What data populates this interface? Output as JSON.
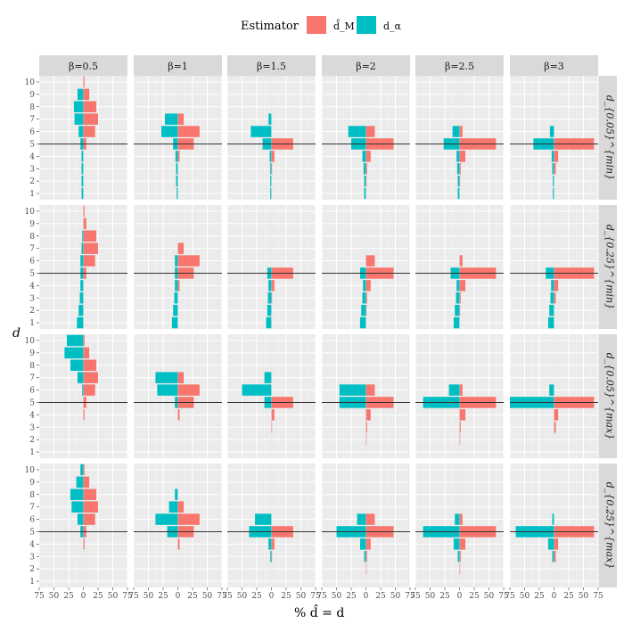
{
  "chart_data": {
    "type": "bar",
    "orientation": "horizontal-mirrored",
    "legend": {
      "title": "Estimator",
      "position": "top",
      "entries": [
        {
          "label": "d̂_M",
          "color": "#F8766D"
        },
        {
          "label": "d_α",
          "color": "#00BFC4"
        }
      ]
    },
    "xlabel": "% d̂ = d",
    "ylabel": "d",
    "x_ticks": [
      75,
      50,
      25,
      0,
      25,
      50,
      75
    ],
    "xlim": [
      -75,
      75
    ],
    "y_categories": [
      1,
      2,
      3,
      4,
      5,
      6,
      7,
      8,
      9,
      10
    ],
    "reference_line_y": 5,
    "columns": [
      "β=0.5",
      "β=1",
      "β=1.5",
      "β=2",
      "β=2.5",
      "β=3"
    ],
    "rows": [
      "d_{0.05}^{min}",
      "d_{0.25}^{min}",
      "d_{0.05}^{max}",
      "d_{0.25}^{max}"
    ],
    "panels": [
      [
        {
          "red": [
            0,
            0,
            0,
            0,
            5,
            20,
            25,
            22,
            10,
            2
          ],
          "teal": [
            3,
            3,
            3,
            3,
            5,
            8,
            15,
            16,
            10,
            0
          ]
        },
        {
          "red": [
            0,
            0,
            0,
            3,
            27,
            37,
            10,
            0,
            0,
            0
          ],
          "teal": [
            2,
            3,
            3,
            4,
            8,
            28,
            22,
            0,
            0,
            0
          ]
        },
        {
          "red": [
            0,
            0,
            1,
            5,
            37,
            0,
            0,
            0,
            0,
            0
          ],
          "teal": [
            2,
            2,
            2,
            3,
            15,
            35,
            5,
            0,
            0,
            0
          ]
        },
        {
          "red": [
            0,
            1,
            2,
            8,
            47,
            15,
            0,
            0,
            0,
            0
          ],
          "teal": [
            3,
            3,
            4,
            6,
            25,
            30,
            0,
            0,
            0,
            0
          ]
        },
        {
          "red": [
            0,
            1,
            2,
            10,
            62,
            5,
            0,
            0,
            0,
            0
          ],
          "teal": [
            3,
            3,
            4,
            5,
            27,
            12,
            0,
            0,
            0,
            0
          ]
        },
        {
          "red": [
            0,
            0,
            3,
            7,
            68,
            0,
            0,
            0,
            0,
            0
          ],
          "teal": [
            2,
            2,
            3,
            4,
            35,
            7,
            0,
            0,
            0,
            0
          ]
        }
      ],
      [
        {
          "red": [
            0,
            0,
            0,
            0,
            5,
            20,
            25,
            22,
            5,
            2
          ],
          "teal": [
            11,
            8,
            6,
            5,
            5,
            5,
            3,
            2,
            0,
            0
          ]
        },
        {
          "red": [
            0,
            0,
            0,
            3,
            27,
            37,
            10,
            0,
            0,
            0
          ],
          "teal": [
            10,
            8,
            6,
            5,
            5,
            5,
            0,
            0,
            0,
            0
          ]
        },
        {
          "red": [
            0,
            0,
            1,
            5,
            37,
            0,
            0,
            0,
            0,
            0
          ],
          "teal": [
            9,
            7,
            6,
            5,
            7,
            0,
            0,
            0,
            0,
            0
          ]
        },
        {
          "red": [
            0,
            1,
            2,
            8,
            47,
            15,
            0,
            0,
            0,
            0
          ],
          "teal": [
            10,
            8,
            6,
            5,
            10,
            0,
            0,
            0,
            0,
            0
          ]
        },
        {
          "red": [
            0,
            1,
            2,
            10,
            62,
            5,
            0,
            0,
            0,
            0
          ],
          "teal": [
            10,
            8,
            6,
            5,
            15,
            0,
            0,
            0,
            0,
            0
          ]
        },
        {
          "red": [
            0,
            0,
            3,
            7,
            68,
            0,
            0,
            0,
            0,
            0
          ],
          "teal": [
            10,
            8,
            6,
            5,
            14,
            0,
            0,
            0,
            0,
            0
          ]
        }
      ],
      [
        {
          "red": [
            0,
            0,
            0,
            2,
            5,
            20,
            25,
            22,
            10,
            2
          ],
          "teal": [
            0,
            0,
            0,
            0,
            0,
            2,
            10,
            22,
            32,
            28
          ]
        },
        {
          "red": [
            0,
            0,
            0,
            3,
            27,
            37,
            10,
            0,
            0,
            0
          ],
          "teal": [
            0,
            0,
            0,
            0,
            5,
            35,
            38,
            0,
            0,
            0
          ]
        },
        {
          "red": [
            0,
            0,
            1,
            5,
            37,
            0,
            0,
            0,
            0,
            0
          ],
          "teal": [
            0,
            0,
            0,
            0,
            12,
            50,
            12,
            0,
            0,
            0
          ]
        },
        {
          "red": [
            0,
            1,
            2,
            8,
            47,
            15,
            0,
            0,
            0,
            0
          ],
          "teal": [
            0,
            0,
            0,
            0,
            45,
            45,
            0,
            0,
            0,
            0
          ]
        },
        {
          "red": [
            0,
            1,
            2,
            10,
            62,
            5,
            0,
            0,
            0,
            0
          ],
          "teal": [
            0,
            0,
            0,
            0,
            62,
            18,
            0,
            0,
            0,
            0
          ]
        },
        {
          "red": [
            0,
            0,
            3,
            7,
            68,
            0,
            0,
            0,
            0,
            0
          ],
          "teal": [
            0,
            0,
            0,
            0,
            75,
            8,
            0,
            0,
            0,
            0
          ]
        }
      ],
      [
        {
          "red": [
            0,
            0,
            0,
            2,
            5,
            20,
            25,
            22,
            10,
            2
          ],
          "teal": [
            0,
            0,
            0,
            0,
            5,
            10,
            20,
            22,
            12,
            5
          ]
        },
        {
          "red": [
            0,
            0,
            0,
            3,
            27,
            37,
            10,
            0,
            0,
            0
          ],
          "teal": [
            0,
            0,
            0,
            0,
            18,
            38,
            15,
            5,
            0,
            0
          ]
        },
        {
          "red": [
            0,
            0,
            1,
            5,
            37,
            0,
            0,
            0,
            0,
            0
          ],
          "teal": [
            0,
            0,
            2,
            5,
            38,
            28,
            0,
            0,
            0,
            0
          ]
        },
        {
          "red": [
            0,
            1,
            2,
            8,
            47,
            15,
            0,
            0,
            0,
            0
          ],
          "teal": [
            0,
            0,
            3,
            10,
            50,
            15,
            0,
            0,
            0,
            0
          ]
        },
        {
          "red": [
            0,
            1,
            2,
            10,
            62,
            5,
            0,
            0,
            0,
            0
          ],
          "teal": [
            0,
            0,
            3,
            10,
            62,
            8,
            0,
            0,
            0,
            0
          ]
        },
        {
          "red": [
            0,
            0,
            3,
            7,
            68,
            0,
            0,
            0,
            0,
            0
          ],
          "teal": [
            0,
            0,
            3,
            10,
            65,
            3,
            0,
            0,
            0,
            0
          ]
        }
      ]
    ]
  }
}
